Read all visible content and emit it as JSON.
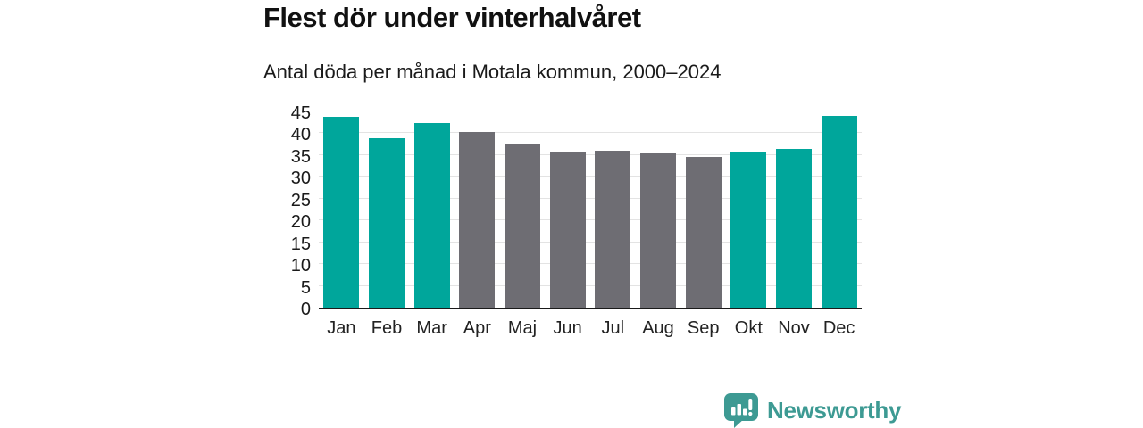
{
  "chart_data": {
    "type": "bar",
    "title": "Flest dör under vinterhalvåret",
    "subtitle": "Antal döda per månad i Motala kommun, 2000–2024",
    "categories": [
      "Jan",
      "Feb",
      "Mar",
      "Apr",
      "Maj",
      "Jun",
      "Jul",
      "Aug",
      "Sep",
      "Okt",
      "Nov",
      "Dec"
    ],
    "values": [
      43.7,
      38.8,
      42.3,
      40.3,
      37.5,
      35.5,
      36.0,
      35.4,
      34.5,
      35.7,
      36.4,
      43.9
    ],
    "highlighted": [
      true,
      true,
      true,
      false,
      false,
      false,
      false,
      false,
      false,
      true,
      true,
      true
    ],
    "xlabel": "",
    "ylabel": "",
    "ylim": [
      0,
      45
    ],
    "yticks": [
      0,
      5,
      10,
      15,
      20,
      25,
      30,
      35,
      40,
      45
    ],
    "grid": true,
    "legend": "none"
  },
  "colors": {
    "bar_highlight": "#00a69b",
    "bar_muted": "#6e6d73",
    "gridline": "#e3e3e3",
    "axis_line": "#1a1a1a",
    "logo": "#3d9a93",
    "logo_glyph": "#ffffff"
  },
  "branding": {
    "logo_text": "Newsworthy",
    "logo_icon": "bar-chart-speech-bubble-icon"
  }
}
